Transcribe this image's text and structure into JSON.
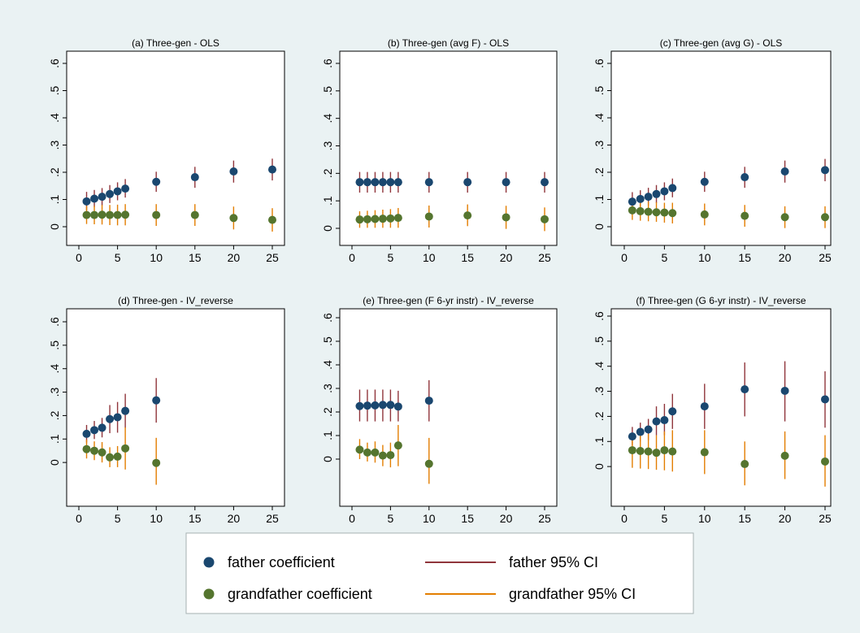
{
  "legend": {
    "father_coef": "father coefficient",
    "grandfather_coef": "grandfather coefficient",
    "father_ci": "father 95% CI",
    "grandfather_ci": "grandfather 95% CI"
  },
  "colors": {
    "background": "#eaf2f3",
    "plot_bg": "#ffffff",
    "father_point": "#1a476f",
    "grandfather_point": "#55752f",
    "father_ci": "#90353b",
    "grandfather_ci": "#e37e00"
  },
  "chart_data": [
    {
      "type": "scatter",
      "title": "(a) Three-gen - OLS",
      "xlim": [
        0,
        25
      ],
      "xticks": [
        0,
        5,
        10,
        15,
        20,
        25
      ],
      "ylim": [
        0,
        0.6
      ],
      "yticks": [
        0,
        0.1,
        0.2,
        0.3,
        0.4,
        0.5,
        0.6
      ],
      "ytick_labels": [
        "0",
        ".1",
        ".2",
        ".3",
        ".4",
        ".5",
        ".6"
      ],
      "x": [
        1,
        2,
        3,
        4,
        5,
        6,
        10,
        15,
        20,
        25
      ],
      "series": [
        {
          "key": "father",
          "values": [
            0.093,
            0.103,
            0.11,
            0.12,
            0.13,
            0.14,
            0.165,
            0.182,
            0.203,
            0.21
          ],
          "ci_low": [
            0.06,
            0.072,
            0.078,
            0.087,
            0.097,
            0.107,
            0.128,
            0.143,
            0.162,
            0.17
          ],
          "ci_high": [
            0.128,
            0.135,
            0.142,
            0.153,
            0.163,
            0.175,
            0.202,
            0.22,
            0.243,
            0.25
          ]
        },
        {
          "key": "grandfather",
          "values": [
            0.043,
            0.043,
            0.044,
            0.043,
            0.043,
            0.044,
            0.043,
            0.043,
            0.032,
            0.025
          ],
          "ci_low": [
            0.01,
            0.009,
            0.008,
            0.006,
            0.005,
            0.005,
            0.003,
            0.003,
            -0.01,
            -0.018
          ],
          "ci_high": [
            0.076,
            0.077,
            0.08,
            0.08,
            0.081,
            0.083,
            0.083,
            0.083,
            0.074,
            0.068
          ]
        }
      ]
    },
    {
      "type": "scatter",
      "title": "(b) Three-gen (avg F) - OLS",
      "xlim": [
        0,
        25
      ],
      "xticks": [
        0,
        5,
        10,
        15,
        20,
        25
      ],
      "ylim": [
        0,
        0.6
      ],
      "yticks": [
        0,
        0.1,
        0.2,
        0.3,
        0.4,
        0.5,
        0.6
      ],
      "ytick_labels": [
        "0",
        ".1",
        ".2",
        ".3",
        ".4",
        ".5",
        ".6"
      ],
      "x": [
        1,
        2,
        3,
        4,
        5,
        6,
        10,
        15,
        20,
        25
      ],
      "series": [
        {
          "key": "father",
          "values": [
            0.168,
            0.168,
            0.168,
            0.168,
            0.168,
            0.168,
            0.168,
            0.168,
            0.168,
            0.168
          ],
          "ci_low": [
            0.13,
            0.13,
            0.13,
            0.13,
            0.13,
            0.13,
            0.13,
            0.13,
            0.13,
            0.13
          ],
          "ci_high": [
            0.205,
            0.205,
            0.205,
            0.205,
            0.205,
            0.205,
            0.205,
            0.205,
            0.205,
            0.205
          ]
        },
        {
          "key": "grandfather",
          "values": [
            0.032,
            0.033,
            0.034,
            0.035,
            0.036,
            0.038,
            0.043,
            0.047,
            0.04,
            0.033
          ],
          "ci_low": [
            0.002,
            0.002,
            0.002,
            0.002,
            0.002,
            0.002,
            0.003,
            0.008,
            -0.002,
            -0.01
          ],
          "ci_high": [
            0.062,
            0.064,
            0.066,
            0.068,
            0.07,
            0.074,
            0.083,
            0.087,
            0.082,
            0.076
          ]
        }
      ]
    },
    {
      "type": "scatter",
      "title": "(c) Three-gen (avg G) - OLS",
      "xlim": [
        0,
        25
      ],
      "xticks": [
        0,
        5,
        10,
        15,
        20,
        25
      ],
      "ylim": [
        0,
        0.6
      ],
      "yticks": [
        0,
        0.1,
        0.2,
        0.3,
        0.4,
        0.5,
        0.6
      ],
      "ytick_labels": [
        "0",
        ".1",
        ".2",
        ".3",
        ".4",
        ".5",
        ".6"
      ],
      "x": [
        1,
        2,
        3,
        4,
        5,
        6,
        10,
        15,
        20,
        25
      ],
      "series": [
        {
          "key": "father",
          "values": [
            0.092,
            0.102,
            0.11,
            0.12,
            0.13,
            0.142,
            0.165,
            0.182,
            0.203,
            0.208
          ],
          "ci_low": [
            0.06,
            0.07,
            0.077,
            0.087,
            0.097,
            0.108,
            0.128,
            0.143,
            0.162,
            0.167
          ],
          "ci_high": [
            0.127,
            0.134,
            0.143,
            0.153,
            0.163,
            0.177,
            0.202,
            0.22,
            0.243,
            0.249
          ]
        },
        {
          "key": "grandfather",
          "values": [
            0.06,
            0.057,
            0.055,
            0.053,
            0.052,
            0.05,
            0.045,
            0.04,
            0.035,
            0.035
          ],
          "ci_low": [
            0.025,
            0.022,
            0.02,
            0.018,
            0.015,
            0.012,
            0.005,
            0.0,
            -0.005,
            -0.005
          ],
          "ci_high": [
            0.095,
            0.093,
            0.092,
            0.09,
            0.088,
            0.088,
            0.085,
            0.08,
            0.075,
            0.075
          ]
        }
      ]
    },
    {
      "type": "scatter",
      "title": "(d) Three-gen - IV_reverse",
      "xlim": [
        0,
        25
      ],
      "xticks": [
        0,
        5,
        10,
        15,
        20,
        25
      ],
      "ylim": [
        -0.1,
        0.6
      ],
      "yticks": [
        0,
        0.1,
        0.2,
        0.3,
        0.4,
        0.5,
        0.6
      ],
      "ytick_labels": [
        "0",
        ".1",
        ".2",
        ".3",
        ".4",
        ".5",
        ".6"
      ],
      "x": [
        1,
        2,
        3,
        4,
        5,
        6,
        10
      ],
      "series": [
        {
          "key": "father",
          "values": [
            0.122,
            0.138,
            0.148,
            0.185,
            0.193,
            0.22,
            0.265
          ],
          "ci_low": [
            0.085,
            0.1,
            0.107,
            0.125,
            0.127,
            0.147,
            0.17
          ],
          "ci_high": [
            0.16,
            0.177,
            0.19,
            0.245,
            0.258,
            0.293,
            0.36
          ]
        },
        {
          "key": "grandfather",
          "values": [
            0.057,
            0.05,
            0.043,
            0.022,
            0.025,
            0.06,
            -0.002
          ],
          "ci_low": [
            0.017,
            0.01,
            0.0,
            -0.02,
            -0.02,
            -0.03,
            -0.095
          ],
          "ci_high": [
            0.097,
            0.09,
            0.087,
            0.065,
            0.07,
            0.15,
            0.105
          ]
        }
      ]
    },
    {
      "type": "scatter",
      "title": "(e) Three-gen (F 6-yr instr) - IV_reverse",
      "xlim": [
        0,
        25
      ],
      "xticks": [
        0,
        5,
        10,
        15,
        20,
        25
      ],
      "ylim": [
        -0.1,
        0.6
      ],
      "yticks": [
        0,
        0.1,
        0.2,
        0.3,
        0.4,
        0.5,
        0.6
      ],
      "ytick_labels": [
        "0",
        ".1",
        ".2",
        ".3",
        ".4",
        ".5",
        ".6"
      ],
      "x": [
        1,
        2,
        3,
        4,
        5,
        6,
        10
      ],
      "series": [
        {
          "key": "father",
          "values": [
            0.225,
            0.227,
            0.228,
            0.23,
            0.23,
            0.223,
            0.248
          ],
          "ci_low": [
            0.16,
            0.16,
            0.16,
            0.16,
            0.16,
            0.16,
            0.16
          ],
          "ci_high": [
            0.295,
            0.295,
            0.295,
            0.295,
            0.295,
            0.29,
            0.335
          ]
        },
        {
          "key": "grandfather",
          "values": [
            0.04,
            0.028,
            0.028,
            0.015,
            0.017,
            0.058,
            -0.02
          ],
          "ci_low": [
            0.0,
            -0.01,
            -0.015,
            -0.03,
            -0.035,
            -0.03,
            -0.105
          ],
          "ci_high": [
            0.085,
            0.07,
            0.075,
            0.06,
            0.07,
            0.145,
            0.09
          ]
        }
      ]
    },
    {
      "type": "scatter",
      "title": "(f) Three-gen (G 6-yr instr) - IV_reverse",
      "xlim": [
        0,
        25
      ],
      "xticks": [
        0,
        5,
        10,
        15,
        20,
        25
      ],
      "ylim": [
        -0.1,
        0.6
      ],
      "yticks": [
        0,
        0.1,
        0.2,
        0.3,
        0.4,
        0.5,
        0.6
      ],
      "ytick_labels": [
        "0",
        ".1",
        ".2",
        ".3",
        ".4",
        ".5",
        ".6"
      ],
      "x": [
        1,
        2,
        3,
        4,
        5,
        6,
        10,
        15,
        20,
        25
      ],
      "series": [
        {
          "key": "father",
          "values": [
            0.12,
            0.138,
            0.148,
            0.18,
            0.185,
            0.22,
            0.24,
            0.308,
            0.302,
            0.268
          ],
          "ci_low": [
            0.085,
            0.1,
            0.105,
            0.125,
            0.125,
            0.15,
            0.15,
            0.2,
            0.18,
            0.155
          ],
          "ci_high": [
            0.158,
            0.175,
            0.19,
            0.24,
            0.25,
            0.29,
            0.33,
            0.415,
            0.42,
            0.38
          ]
        },
        {
          "key": "grandfather",
          "values": [
            0.065,
            0.062,
            0.06,
            0.055,
            0.065,
            0.06,
            0.057,
            0.01,
            0.043,
            0.02
          ],
          "ci_low": [
            -0.005,
            -0.008,
            -0.01,
            -0.013,
            -0.015,
            -0.02,
            -0.03,
            -0.075,
            -0.05,
            -0.08
          ],
          "ci_high": [
            0.13,
            0.13,
            0.13,
            0.125,
            0.14,
            0.145,
            0.145,
            0.1,
            0.14,
            0.125
          ]
        }
      ]
    }
  ]
}
